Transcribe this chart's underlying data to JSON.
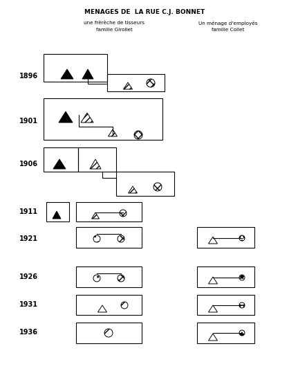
{
  "title": "MENAGES DE  LA RUE C.J. BONNET",
  "col1_line1": "une frèrèche de tisseurs",
  "col1_line2": "famille Girollet",
  "col2_line1": "Un ménage d'employés",
  "col2_line2": "famille Collet",
  "bg": "#ffffff",
  "fg": "#000000",
  "years": {
    "1896": 110,
    "1901": 175,
    "1906": 237,
    "1911": 306,
    "1921": 345,
    "1926": 400,
    "1931": 440,
    "1936": 480
  }
}
